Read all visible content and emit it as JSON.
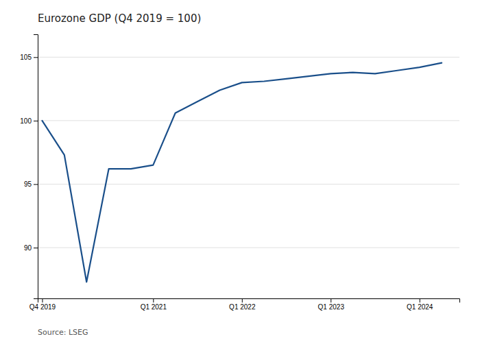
{
  "chart_data": {
    "type": "line",
    "title": "Eurozone GDP (Q4 2019 = 100)",
    "annotations": [
      "Source: LSEG"
    ],
    "x": [
      0,
      1,
      2,
      3,
      4,
      5,
      6,
      7,
      8,
      9,
      10,
      11,
      12,
      13,
      14,
      15,
      16,
      17,
      18
    ],
    "values": [
      100.0,
      97.3,
      87.3,
      96.2,
      96.2,
      96.5,
      100.6,
      101.5,
      102.4,
      103.0,
      103.1,
      103.3,
      103.5,
      103.7,
      103.8,
      103.7,
      103.95,
      104.2,
      104.55
    ],
    "color": "#1a4f8a",
    "xlim": [
      -0.2,
      18.8
    ],
    "xticks": [
      {
        "value": 0,
        "label": "Q4 2019"
      },
      {
        "value": 5,
        "label": "Q1 2021"
      },
      {
        "value": 9,
        "label": "Q1 2022"
      },
      {
        "value": 13,
        "label": "Q1 2023"
      },
      {
        "value": 17,
        "label": "Q1 2024"
      }
    ],
    "ylim": [
      86.0,
      106.8
    ],
    "yticks": [
      90,
      95,
      100,
      105
    ],
    "grid": true
  }
}
